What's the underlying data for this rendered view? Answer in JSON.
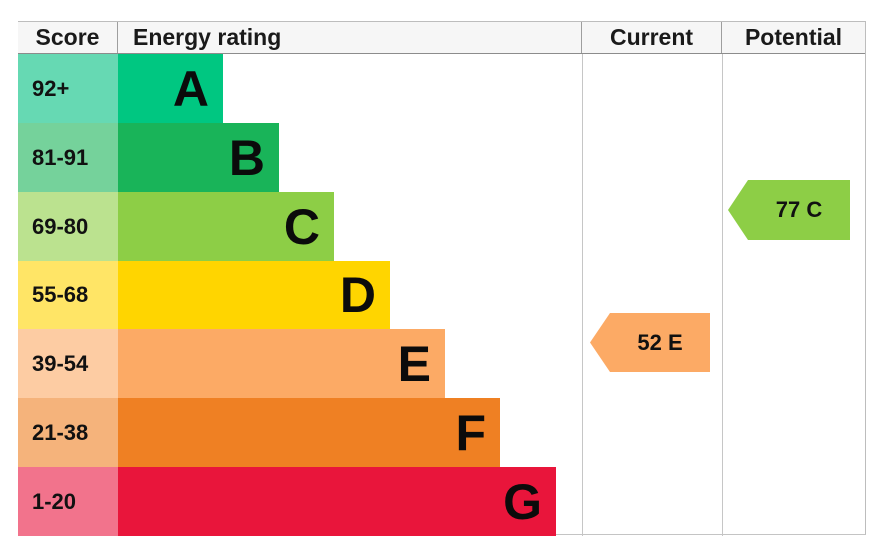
{
  "header": {
    "score": "Score",
    "energy_rating": "Energy rating",
    "current": "Current",
    "potential": "Potential"
  },
  "bands": [
    {
      "score": "92+",
      "letter": "A",
      "color": "#00c781",
      "score_bg": "#66d9b3"
    },
    {
      "score": "81-91",
      "letter": "B",
      "color": "#19b459",
      "score_bg": "#75d29b"
    },
    {
      "score": "69-80",
      "letter": "C",
      "color": "#8dce46",
      "score_bg": "#bbe28f"
    },
    {
      "score": "55-68",
      "letter": "D",
      "color": "#ffd500",
      "score_bg": "#ffe566"
    },
    {
      "score": "39-54",
      "letter": "E",
      "color": "#fcaa65",
      "score_bg": "#fdcca3"
    },
    {
      "score": "21-38",
      "letter": "F",
      "color": "#ef8023",
      "score_bg": "#f5b37b"
    },
    {
      "score": "1-20",
      "letter": "G",
      "color": "#e9153b",
      "score_bg": "#f2738c"
    }
  ],
  "current": {
    "label": "52 E",
    "value": 52,
    "rating": "E",
    "color": "#fcaa65"
  },
  "potential": {
    "label": "77 C",
    "value": 77,
    "rating": "C",
    "color": "#8dce46"
  },
  "chart_data": {
    "type": "bar",
    "title": "Energy rating",
    "categories": [
      "A",
      "B",
      "C",
      "D",
      "E",
      "F",
      "G"
    ],
    "score_ranges": [
      "92+",
      "81-91",
      "69-80",
      "55-68",
      "39-54",
      "21-38",
      "1-20"
    ],
    "band_colors": [
      "#00c781",
      "#19b459",
      "#8dce46",
      "#ffd500",
      "#fcaa65",
      "#ef8023",
      "#e9153b"
    ],
    "bar_lengths_relative": [
      1,
      2,
      3,
      4,
      5,
      6,
      7
    ],
    "columns": [
      "Score",
      "Energy rating",
      "Current",
      "Potential"
    ],
    "current": {
      "value": 52,
      "band": "E"
    },
    "potential": {
      "value": 77,
      "band": "C"
    },
    "legend_position": "none",
    "grid": false
  }
}
